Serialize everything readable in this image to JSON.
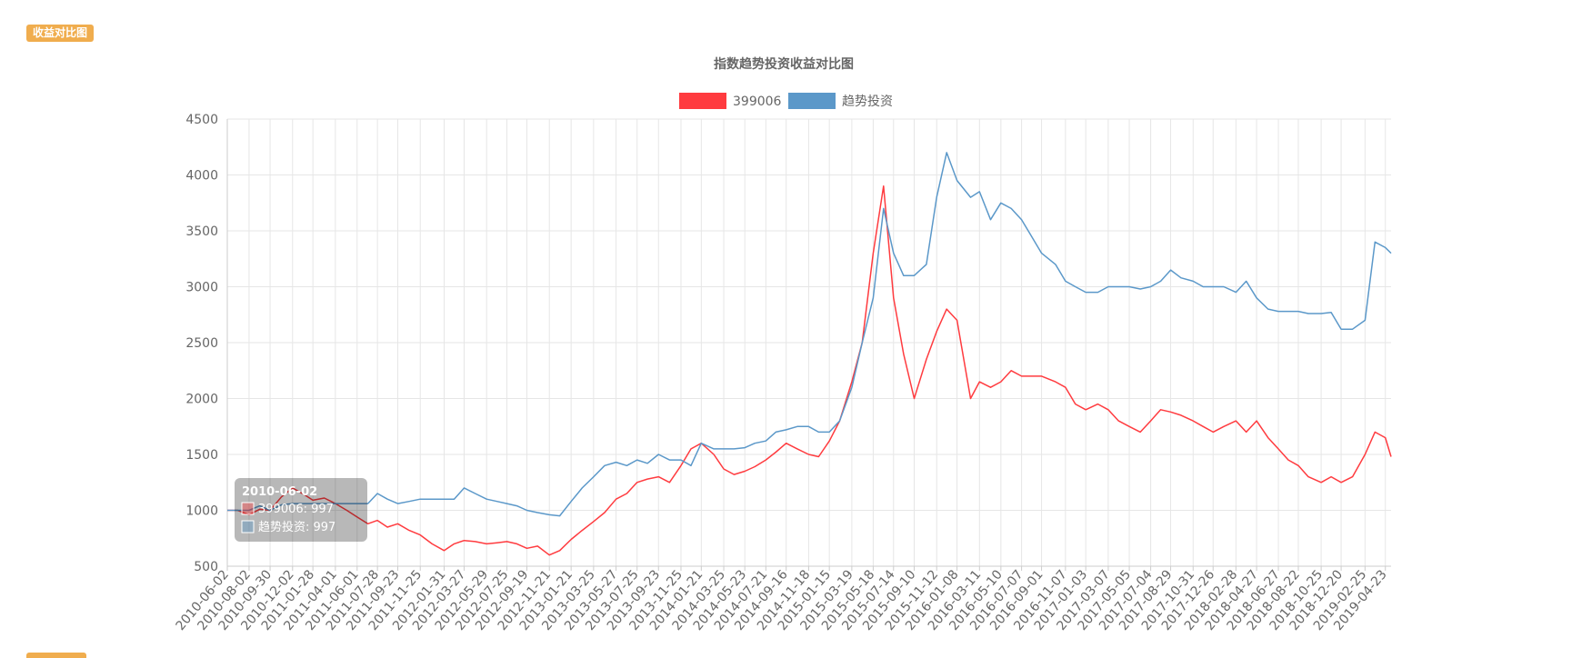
{
  "badge": {
    "label": "收益对比图"
  },
  "chart_data": {
    "type": "line",
    "title": "指数趋势投资收益对比图",
    "xlabel": "",
    "ylabel": "",
    "ylim": [
      500,
      4500
    ],
    "yticks": [
      500,
      1000,
      1500,
      2000,
      2500,
      3000,
      3500,
      4000,
      4500
    ],
    "grid": true,
    "legend_position": "top-center",
    "x_tick_labels": [
      "2010-06-02",
      "2010-08-02",
      "2010-09-30",
      "2010-12-02",
      "2011-01-28",
      "2011-04-01",
      "2011-06-01",
      "2011-07-28",
      "2011-09-23",
      "2011-11-25",
      "2012-01-31",
      "2012-03-27",
      "2012-05-29",
      "2012-07-25",
      "2012-09-19",
      "2012-11-21",
      "2013-01-21",
      "2013-03-25",
      "2013-05-27",
      "2013-07-25",
      "2013-09-23",
      "2013-11-25",
      "2014-01-21",
      "2014-03-25",
      "2014-05-23",
      "2014-07-21",
      "2014-09-16",
      "2014-11-18",
      "2015-01-15",
      "2015-03-19",
      "2015-05-18",
      "2015-07-14",
      "2015-09-10",
      "2015-11-12",
      "2016-01-08",
      "2016-03-11",
      "2016-05-10",
      "2016-07-07",
      "2016-09-01",
      "2016-11-07",
      "2017-01-03",
      "2017-03-07",
      "2017-05-05",
      "2017-07-04",
      "2017-08-29",
      "2017-10-31",
      "2017-12-26",
      "2018-02-28",
      "2018-04-27",
      "2018-06-27",
      "2018-08-22",
      "2018-10-25",
      "2018-12-20",
      "2019-02-25",
      "2019-04-23"
    ],
    "x": [
      "2010-06-02",
      "2010-07-01",
      "2010-08-02",
      "2010-09-01",
      "2010-09-30",
      "2010-11-01",
      "2010-12-02",
      "2011-01-04",
      "2011-01-28",
      "2011-03-01",
      "2011-04-01",
      "2011-05-03",
      "2011-06-01",
      "2011-07-01",
      "2011-07-28",
      "2011-08-25",
      "2011-09-23",
      "2011-10-25",
      "2011-11-25",
      "2011-12-28",
      "2012-01-31",
      "2012-02-28",
      "2012-03-27",
      "2012-04-27",
      "2012-05-29",
      "2012-06-27",
      "2012-07-25",
      "2012-08-22",
      "2012-09-19",
      "2012-10-19",
      "2012-11-21",
      "2012-12-20",
      "2013-01-21",
      "2013-02-21",
      "2013-03-25",
      "2013-04-25",
      "2013-05-27",
      "2013-06-26",
      "2013-07-25",
      "2013-08-23",
      "2013-09-23",
      "2013-10-24",
      "2013-11-25",
      "2013-12-23",
      "2014-01-21",
      "2014-02-25",
      "2014-03-25",
      "2014-04-23",
      "2014-05-23",
      "2014-06-20",
      "2014-07-21",
      "2014-08-18",
      "2014-09-16",
      "2014-10-17",
      "2014-11-18",
      "2014-12-16",
      "2015-01-15",
      "2015-02-13",
      "2015-03-19",
      "2015-04-17",
      "2015-05-18",
      "2015-06-16",
      "2015-07-14",
      "2015-08-11",
      "2015-09-10",
      "2015-10-14",
      "2015-11-12",
      "2015-12-10",
      "2016-01-08",
      "2016-02-15",
      "2016-03-11",
      "2016-04-11",
      "2016-05-10",
      "2016-06-08",
      "2016-07-07",
      "2016-08-04",
      "2016-09-01",
      "2016-10-10",
      "2016-11-07",
      "2016-12-05",
      "2017-01-03",
      "2017-02-06",
      "2017-03-07",
      "2017-04-05",
      "2017-05-05",
      "2017-06-05",
      "2017-07-04",
      "2017-08-01",
      "2017-08-29",
      "2017-09-27",
      "2017-10-31",
      "2017-11-28",
      "2017-12-26",
      "2018-01-25",
      "2018-02-28",
      "2018-03-29",
      "2018-04-27",
      "2018-05-29",
      "2018-06-27",
      "2018-07-25",
      "2018-08-22",
      "2018-09-19",
      "2018-10-25",
      "2018-11-22",
      "2018-12-20",
      "2019-01-21",
      "2019-02-25",
      "2019-03-25",
      "2019-04-23",
      "2019-05-09"
    ],
    "series": [
      {
        "name": "399006",
        "color": "#ff3b3f",
        "values": [
          1000,
          1000,
          960,
          1010,
          1000,
          1120,
          1200,
          1140,
          1090,
          1110,
          1060,
          1000,
          940,
          880,
          910,
          850,
          880,
          820,
          780,
          700,
          640,
          700,
          730,
          720,
          700,
          710,
          720,
          700,
          660,
          680,
          600,
          640,
          740,
          820,
          900,
          980,
          1100,
          1150,
          1250,
          1280,
          1300,
          1250,
          1400,
          1550,
          1600,
          1500,
          1370,
          1320,
          1350,
          1390,
          1450,
          1520,
          1600,
          1550,
          1500,
          1480,
          1620,
          1800,
          2150,
          2500,
          3300,
          3900,
          2900,
          2400,
          2000,
          2350,
          2600,
          2800,
          2700,
          2000,
          2150,
          2100,
          2150,
          2250,
          2200,
          2200,
          2200,
          2150,
          2100,
          1950,
          1900,
          1950,
          1900,
          1800,
          1750,
          1700,
          1800,
          1900,
          1880,
          1850,
          1800,
          1750,
          1700,
          1750,
          1800,
          1700,
          1800,
          1650,
          1550,
          1450,
          1400,
          1300,
          1250,
          1300,
          1250,
          1300,
          1500,
          1700,
          1650,
          1480
        ]
      },
      {
        "name": "趋势投资",
        "color": "#5b98c9",
        "values": [
          1000,
          1000,
          1000,
          1040,
          1000,
          1050,
          1060,
          1060,
          1060,
          1060,
          1060,
          1060,
          1060,
          1060,
          1150,
          1100,
          1060,
          1080,
          1100,
          1100,
          1100,
          1100,
          1200,
          1150,
          1100,
          1080,
          1060,
          1040,
          1000,
          980,
          960,
          950,
          1080,
          1200,
          1300,
          1400,
          1430,
          1400,
          1450,
          1420,
          1500,
          1450,
          1450,
          1400,
          1600,
          1550,
          1550,
          1550,
          1560,
          1600,
          1620,
          1700,
          1720,
          1750,
          1750,
          1700,
          1700,
          1800,
          2100,
          2500,
          2900,
          3700,
          3300,
          3100,
          3100,
          3200,
          3800,
          4200,
          3950,
          3800,
          3850,
          3600,
          3750,
          3700,
          3600,
          3450,
          3300,
          3200,
          3050,
          3000,
          2950,
          2950,
          3000,
          3000,
          3000,
          2980,
          3000,
          3050,
          3150,
          3080,
          3050,
          3000,
          3000,
          3000,
          2950,
          3050,
          2900,
          2800,
          2780,
          2780,
          2780,
          2760,
          2760,
          2770,
          2620,
          2620,
          2700,
          3400,
          3350,
          3300
        ]
      }
    ],
    "tooltip": {
      "title": "2010-06-02",
      "rows": [
        "399006: 997",
        "趋势投资: 997"
      ]
    }
  }
}
